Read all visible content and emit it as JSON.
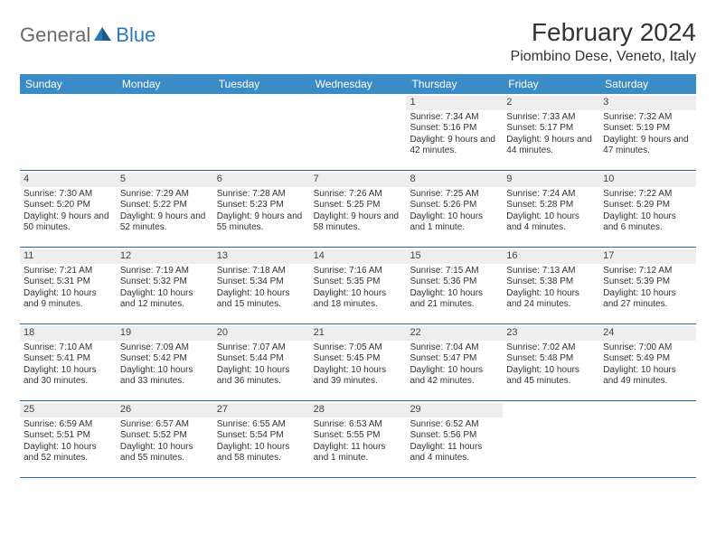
{
  "logo": {
    "general": "General",
    "blue": "Blue"
  },
  "title": "February 2024",
  "location": "Piombino Dese, Veneto, Italy",
  "colors": {
    "header_bg": "#3b8bc6",
    "header_text": "#ffffff",
    "daynum_bg": "#eeeeee",
    "row_border": "#2a6aa0",
    "text": "#333333",
    "logo_gray": "#6a6a6a",
    "logo_blue": "#2a7ab8"
  },
  "dow": [
    "Sunday",
    "Monday",
    "Tuesday",
    "Wednesday",
    "Thursday",
    "Friday",
    "Saturday"
  ],
  "weeks": [
    [
      {
        "n": "",
        "sr": "",
        "ss": "",
        "dl": ""
      },
      {
        "n": "",
        "sr": "",
        "ss": "",
        "dl": ""
      },
      {
        "n": "",
        "sr": "",
        "ss": "",
        "dl": ""
      },
      {
        "n": "",
        "sr": "",
        "ss": "",
        "dl": ""
      },
      {
        "n": "1",
        "sr": "7:34 AM",
        "ss": "5:16 PM",
        "dl": "9 hours and 42 minutes."
      },
      {
        "n": "2",
        "sr": "7:33 AM",
        "ss": "5:17 PM",
        "dl": "9 hours and 44 minutes."
      },
      {
        "n": "3",
        "sr": "7:32 AM",
        "ss": "5:19 PM",
        "dl": "9 hours and 47 minutes."
      }
    ],
    [
      {
        "n": "4",
        "sr": "7:30 AM",
        "ss": "5:20 PM",
        "dl": "9 hours and 50 minutes."
      },
      {
        "n": "5",
        "sr": "7:29 AM",
        "ss": "5:22 PM",
        "dl": "9 hours and 52 minutes."
      },
      {
        "n": "6",
        "sr": "7:28 AM",
        "ss": "5:23 PM",
        "dl": "9 hours and 55 minutes."
      },
      {
        "n": "7",
        "sr": "7:26 AM",
        "ss": "5:25 PM",
        "dl": "9 hours and 58 minutes."
      },
      {
        "n": "8",
        "sr": "7:25 AM",
        "ss": "5:26 PM",
        "dl": "10 hours and 1 minute."
      },
      {
        "n": "9",
        "sr": "7:24 AM",
        "ss": "5:28 PM",
        "dl": "10 hours and 4 minutes."
      },
      {
        "n": "10",
        "sr": "7:22 AM",
        "ss": "5:29 PM",
        "dl": "10 hours and 6 minutes."
      }
    ],
    [
      {
        "n": "11",
        "sr": "7:21 AM",
        "ss": "5:31 PM",
        "dl": "10 hours and 9 minutes."
      },
      {
        "n": "12",
        "sr": "7:19 AM",
        "ss": "5:32 PM",
        "dl": "10 hours and 12 minutes."
      },
      {
        "n": "13",
        "sr": "7:18 AM",
        "ss": "5:34 PM",
        "dl": "10 hours and 15 minutes."
      },
      {
        "n": "14",
        "sr": "7:16 AM",
        "ss": "5:35 PM",
        "dl": "10 hours and 18 minutes."
      },
      {
        "n": "15",
        "sr": "7:15 AM",
        "ss": "5:36 PM",
        "dl": "10 hours and 21 minutes."
      },
      {
        "n": "16",
        "sr": "7:13 AM",
        "ss": "5:38 PM",
        "dl": "10 hours and 24 minutes."
      },
      {
        "n": "17",
        "sr": "7:12 AM",
        "ss": "5:39 PM",
        "dl": "10 hours and 27 minutes."
      }
    ],
    [
      {
        "n": "18",
        "sr": "7:10 AM",
        "ss": "5:41 PM",
        "dl": "10 hours and 30 minutes."
      },
      {
        "n": "19",
        "sr": "7:09 AM",
        "ss": "5:42 PM",
        "dl": "10 hours and 33 minutes."
      },
      {
        "n": "20",
        "sr": "7:07 AM",
        "ss": "5:44 PM",
        "dl": "10 hours and 36 minutes."
      },
      {
        "n": "21",
        "sr": "7:05 AM",
        "ss": "5:45 PM",
        "dl": "10 hours and 39 minutes."
      },
      {
        "n": "22",
        "sr": "7:04 AM",
        "ss": "5:47 PM",
        "dl": "10 hours and 42 minutes."
      },
      {
        "n": "23",
        "sr": "7:02 AM",
        "ss": "5:48 PM",
        "dl": "10 hours and 45 minutes."
      },
      {
        "n": "24",
        "sr": "7:00 AM",
        "ss": "5:49 PM",
        "dl": "10 hours and 49 minutes."
      }
    ],
    [
      {
        "n": "25",
        "sr": "6:59 AM",
        "ss": "5:51 PM",
        "dl": "10 hours and 52 minutes."
      },
      {
        "n": "26",
        "sr": "6:57 AM",
        "ss": "5:52 PM",
        "dl": "10 hours and 55 minutes."
      },
      {
        "n": "27",
        "sr": "6:55 AM",
        "ss": "5:54 PM",
        "dl": "10 hours and 58 minutes."
      },
      {
        "n": "28",
        "sr": "6:53 AM",
        "ss": "5:55 PM",
        "dl": "11 hours and 1 minute."
      },
      {
        "n": "29",
        "sr": "6:52 AM",
        "ss": "5:56 PM",
        "dl": "11 hours and 4 minutes."
      },
      {
        "n": "",
        "sr": "",
        "ss": "",
        "dl": ""
      },
      {
        "n": "",
        "sr": "",
        "ss": "",
        "dl": ""
      }
    ]
  ]
}
